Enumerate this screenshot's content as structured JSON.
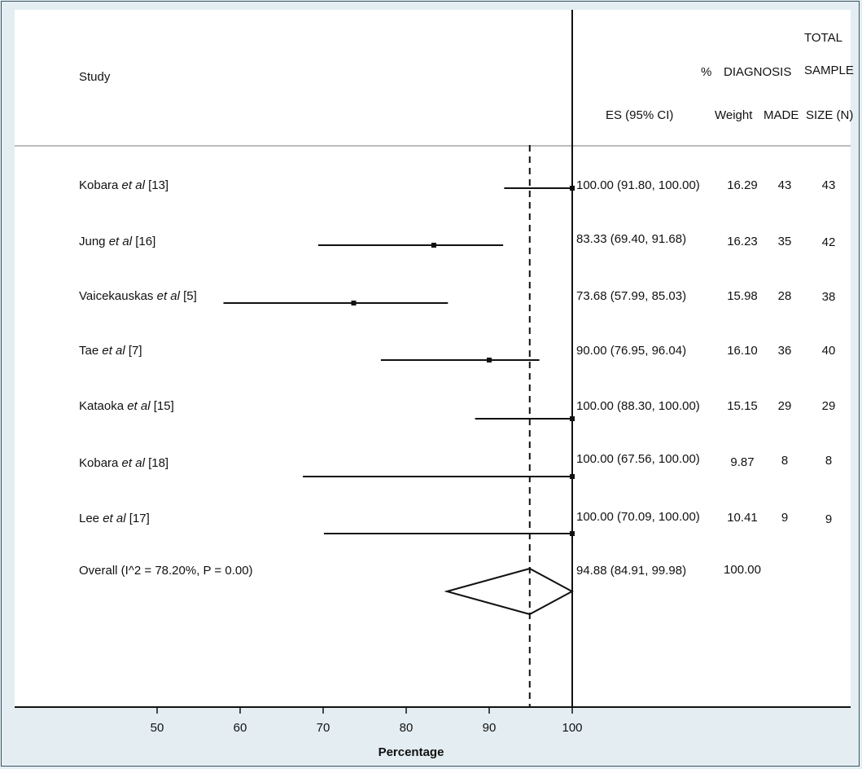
{
  "chart_data": {
    "type": "forest",
    "title": "",
    "xlabel": "Percentage",
    "ylabel": "",
    "xlim": [
      40,
      100
    ],
    "x_ticks": [
      50,
      60,
      70,
      80,
      90,
      100
    ],
    "reference_line": 100,
    "pooled_line": 94.88,
    "headers": {
      "study": "Study",
      "es": "ES (95% CI)",
      "weight_pct": "%",
      "weight": "Weight",
      "diag_1": "DIAGNOSIS",
      "diag_2": "MADE",
      "total_1": "TOTAL",
      "total_2": "SAMPLE",
      "total_3": "SIZE (N)"
    },
    "studies": [
      {
        "name": "Kobara",
        "etal": "et al",
        "ref": "[13]",
        "es": 100.0,
        "lo": 91.8,
        "hi": 100.0,
        "es_text": "100.00 (91.80, 100.00)",
        "weight": "16.29",
        "made": "43",
        "total": "43"
      },
      {
        "name": "Jung",
        "etal": "et al",
        "ref": "[16]",
        "es": 83.33,
        "lo": 69.4,
        "hi": 91.68,
        "es_text": "83.33 (69.40, 91.68)",
        "weight": "16.23",
        "made": "35",
        "total": "42"
      },
      {
        "name": "Vaicekauskas",
        "etal": "et al",
        "ref": "[5]",
        "es": 73.68,
        "lo": 57.99,
        "hi": 85.03,
        "es_text": "73.68 (57.99, 85.03)",
        "weight": "15.98",
        "made": "28",
        "total": "38"
      },
      {
        "name": "Tae",
        "etal": "et al",
        "ref": "[7]",
        "es": 90.0,
        "lo": 76.95,
        "hi": 96.04,
        "es_text": "90.00 (76.95, 96.04)",
        "weight": "16.10",
        "made": "36",
        "total": "40"
      },
      {
        "name": "Kataoka",
        "etal": "et al",
        "ref": "[15]",
        "es": 100.0,
        "lo": 88.3,
        "hi": 100.0,
        "es_text": "100.00 (88.30, 100.00)",
        "weight": "15.15",
        "made": "29",
        "total": "29"
      },
      {
        "name": "Kobara",
        "etal": "et al",
        "ref": "[18]",
        "es": 100.0,
        "lo": 67.56,
        "hi": 100.0,
        "es_text": "100.00 (67.56, 100.00)",
        "weight": "9.87",
        "made": "8",
        "total": "8"
      },
      {
        "name": "Lee",
        "etal": "et al",
        "ref": "[17]",
        "es": 100.0,
        "lo": 70.09,
        "hi": 100.0,
        "es_text": "100.00 (70.09, 100.00)",
        "weight": "10.41",
        "made": "9",
        "total": "9"
      }
    ],
    "overall": {
      "label": "Overall (I^2 = 78.20%, P = 0.00)",
      "es": 94.88,
      "lo": 84.91,
      "hi": 99.98,
      "es_text": "94.88 (84.91, 99.98)",
      "weight": "100.00"
    }
  }
}
